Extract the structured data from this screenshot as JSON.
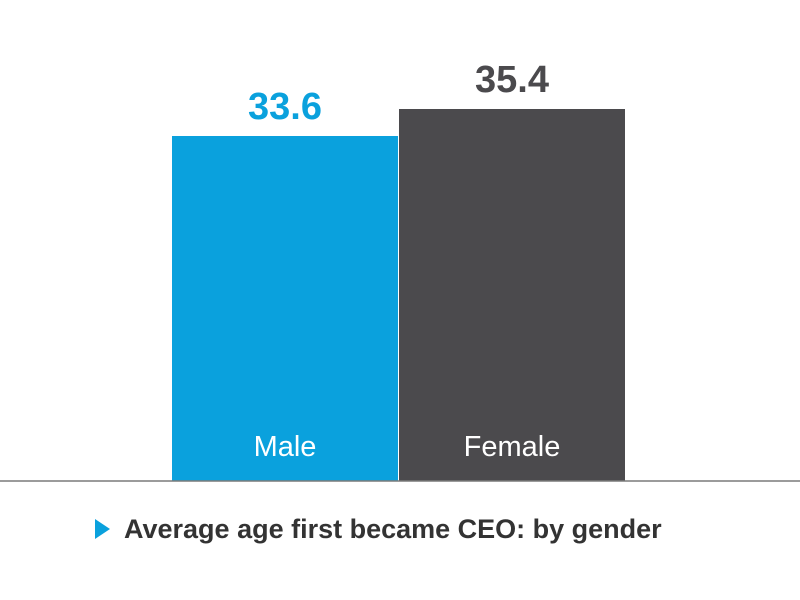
{
  "chart_data": {
    "type": "bar",
    "categories": [
      "Male",
      "Female"
    ],
    "values": [
      33.6,
      35.4
    ],
    "value_labels": [
      "33.6",
      "35.4"
    ],
    "colors": [
      "#0aa1dd",
      "#4b4a4d"
    ],
    "label_colors": [
      "#0aa1dd",
      "#4b4a4d"
    ],
    "category_label_color": "#ffffff",
    "axis_color": "#7a7a7a",
    "caption": "Average age first became CEO: by gender",
    "caption_icon": "play-triangle-icon",
    "ylim": [
      0,
      40
    ]
  }
}
